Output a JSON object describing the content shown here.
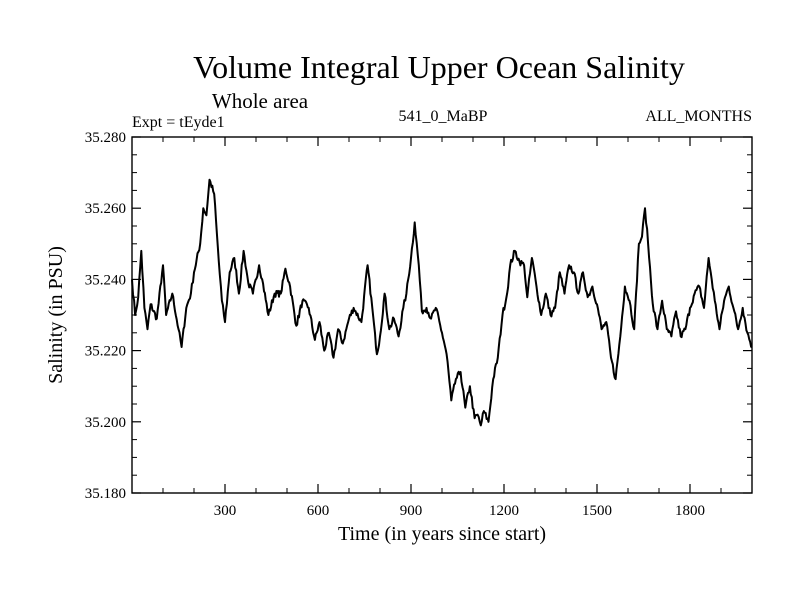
{
  "chart_data": {
    "type": "line",
    "title": "Volume Integral Upper Ocean Salinity",
    "subtitle": "Whole area",
    "experiment": "Expt = tEyde1",
    "period": "541_0_MaBP",
    "months": "ALL_MONTHS",
    "xlabel": "Time (in years since start)",
    "ylabel": "Salinity (in PSU)",
    "xlim": [
      0,
      2000
    ],
    "ylim": [
      35.18,
      35.28
    ],
    "xticks": [
      300,
      600,
      900,
      1200,
      1500,
      1800
    ],
    "xtick_labels": [
      "300",
      "600",
      "900",
      "1200",
      "1500",
      "1800"
    ],
    "yticks": [
      35.18,
      35.2,
      35.22,
      35.24,
      35.26,
      35.28
    ],
    "ytick_labels": [
      "35.180",
      "35.200",
      "35.220",
      "35.240",
      "35.260",
      "35.280"
    ],
    "series": [
      {
        "name": "salinity",
        "x": [
          0,
          10,
          20,
          30,
          40,
          50,
          60,
          80,
          100,
          110,
          130,
          150,
          160,
          175,
          190,
          200,
          220,
          230,
          240,
          250,
          265,
          280,
          290,
          300,
          315,
          330,
          345,
          360,
          375,
          390,
          410,
          420,
          440,
          460,
          480,
          495,
          510,
          530,
          550,
          570,
          590,
          605,
          620,
          635,
          650,
          665,
          680,
          700,
          715,
          740,
          760,
          775,
          790,
          800,
          815,
          830,
          845,
          860,
          875,
          885,
          900,
          912,
          925,
          935,
          950,
          965,
          980,
          1000,
          1015,
          1030,
          1045,
          1060,
          1075,
          1090,
          1105,
          1115,
          1125,
          1135,
          1150,
          1165,
          1180,
          1195,
          1210,
          1220,
          1235,
          1250,
          1265,
          1275,
          1290,
          1305,
          1320,
          1335,
          1350,
          1365,
          1380,
          1395,
          1410,
          1425,
          1440,
          1455,
          1470,
          1485,
          1500,
          1515,
          1530,
          1545,
          1560,
          1575,
          1590,
          1605,
          1620,
          1635,
          1645,
          1655,
          1665,
          1680,
          1695,
          1710,
          1725,
          1740,
          1755,
          1770,
          1785,
          1800,
          1815,
          1830,
          1845,
          1860,
          1870,
          1880,
          1895,
          1910,
          1925,
          1940,
          1955,
          1970,
          1985,
          2000
        ],
        "values": [
          35.24,
          35.23,
          35.235,
          35.248,
          35.232,
          35.226,
          35.233,
          35.229,
          35.244,
          35.23,
          35.236,
          35.226,
          35.221,
          35.232,
          35.236,
          35.242,
          35.25,
          35.26,
          35.258,
          35.268,
          35.264,
          35.245,
          35.234,
          35.228,
          35.242,
          35.246,
          35.236,
          35.248,
          35.239,
          35.236,
          35.244,
          35.24,
          35.23,
          35.236,
          35.236,
          35.243,
          35.238,
          35.227,
          35.234,
          35.232,
          35.223,
          35.228,
          35.22,
          35.225,
          35.218,
          35.226,
          35.222,
          35.229,
          35.232,
          35.228,
          35.244,
          35.232,
          35.219,
          35.224,
          35.236,
          35.226,
          35.229,
          35.224,
          35.232,
          35.236,
          35.246,
          35.256,
          35.244,
          35.231,
          35.232,
          35.229,
          35.232,
          35.225,
          35.219,
          35.206,
          35.212,
          35.214,
          35.204,
          35.21,
          35.201,
          35.202,
          35.199,
          35.203,
          35.2,
          35.212,
          35.218,
          35.23,
          35.236,
          35.244,
          35.248,
          35.245,
          35.244,
          35.235,
          35.246,
          35.238,
          35.23,
          35.236,
          35.23,
          35.232,
          35.242,
          35.236,
          35.244,
          35.242,
          35.236,
          35.242,
          35.235,
          35.238,
          35.233,
          35.226,
          35.228,
          35.218,
          35.212,
          35.224,
          35.238,
          35.234,
          35.226,
          35.25,
          35.252,
          35.26,
          35.25,
          35.233,
          35.226,
          35.234,
          35.226,
          35.224,
          35.231,
          35.224,
          35.226,
          35.232,
          35.236,
          35.238,
          35.232,
          35.246,
          35.24,
          35.234,
          35.226,
          35.234,
          35.238,
          35.232,
          35.226,
          35.232,
          35.225,
          35.221
        ]
      }
    ]
  }
}
